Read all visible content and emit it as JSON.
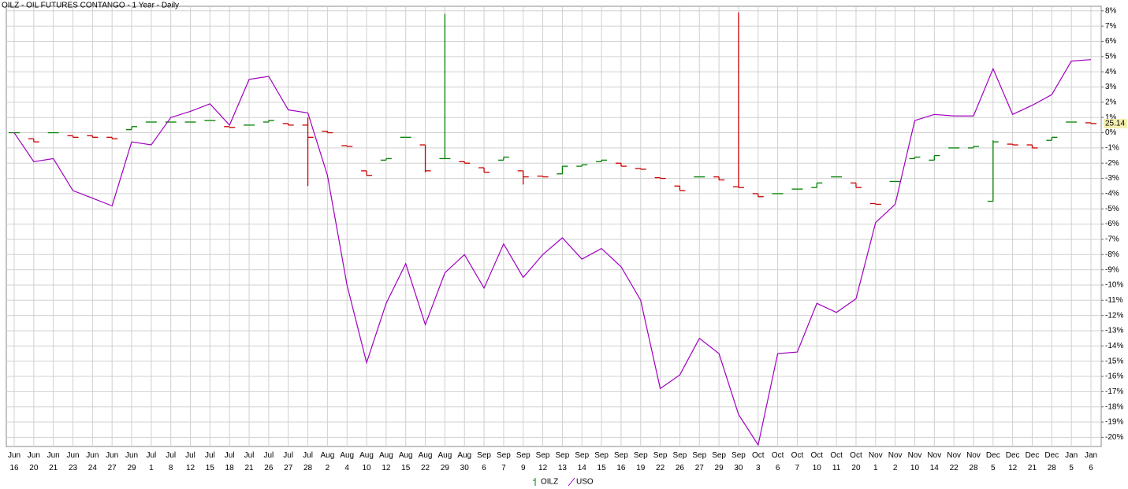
{
  "chart_data": {
    "type": "ohlc_line",
    "title": "OILZ - OIL FUTURES CONTANGO - 1 Year - Daily",
    "categories": [
      [
        "Jun",
        "16"
      ],
      [
        "Jun",
        "20"
      ],
      [
        "Jun",
        "21"
      ],
      [
        "Jun",
        "23"
      ],
      [
        "Jun",
        "24"
      ],
      [
        "Jun",
        "27"
      ],
      [
        "Jun",
        "29"
      ],
      [
        "Jul",
        "1"
      ],
      [
        "Jul",
        "8"
      ],
      [
        "Jul",
        "12"
      ],
      [
        "Jul",
        "15"
      ],
      [
        "Jul",
        "18"
      ],
      [
        "Jul",
        "21"
      ],
      [
        "Jul",
        "26"
      ],
      [
        "Jul",
        "27"
      ],
      [
        "Jul",
        "28"
      ],
      [
        "Aug",
        "2"
      ],
      [
        "Aug",
        "4"
      ],
      [
        "Aug",
        "10"
      ],
      [
        "Aug",
        "12"
      ],
      [
        "Aug",
        "15"
      ],
      [
        "Aug",
        "22"
      ],
      [
        "Aug",
        "29"
      ],
      [
        "Aug",
        "30"
      ],
      [
        "Sep",
        "6"
      ],
      [
        "Sep",
        "7"
      ],
      [
        "Sep",
        "9"
      ],
      [
        "Sep",
        "12"
      ],
      [
        "Sep",
        "13"
      ],
      [
        "Sep",
        "14"
      ],
      [
        "Sep",
        "15"
      ],
      [
        "Sep",
        "16"
      ],
      [
        "Sep",
        "19"
      ],
      [
        "Sep",
        "22"
      ],
      [
        "Sep",
        "26"
      ],
      [
        "Sep",
        "27"
      ],
      [
        "Sep",
        "29"
      ],
      [
        "Sep",
        "30"
      ],
      [
        "Oct",
        "3"
      ],
      [
        "Oct",
        "6"
      ],
      [
        "Oct",
        "7"
      ],
      [
        "Oct",
        "10"
      ],
      [
        "Oct",
        "11"
      ],
      [
        "Oct",
        "20"
      ],
      [
        "Nov",
        "1"
      ],
      [
        "Nov",
        "2"
      ],
      [
        "Nov",
        "10"
      ],
      [
        "Nov",
        "14"
      ],
      [
        "Nov",
        "22"
      ],
      [
        "Nov",
        "28"
      ],
      [
        "Dec",
        "5"
      ],
      [
        "Dec",
        "12"
      ],
      [
        "Dec",
        "21"
      ],
      [
        "Dec",
        "28"
      ],
      [
        "Jan",
        "5"
      ],
      [
        "Jan",
        "6"
      ]
    ],
    "ylim": [
      -20.6,
      8.3
    ],
    "yticks": [
      {
        "value": 8,
        "label": "8%"
      },
      {
        "value": 7,
        "label": "7%"
      },
      {
        "value": 6,
        "label": "6%"
      },
      {
        "value": 5,
        "label": "5%"
      },
      {
        "value": 4,
        "label": "4%"
      },
      {
        "value": 3,
        "label": "3%"
      },
      {
        "value": 2,
        "label": "2%"
      },
      {
        "value": 1,
        "label": "1%"
      },
      {
        "value": 0,
        "label": "0%"
      },
      {
        "value": -1,
        "label": "-1%"
      },
      {
        "value": -2,
        "label": "-2%"
      },
      {
        "value": -3,
        "label": "-3%"
      },
      {
        "value": -4,
        "label": "-4%"
      },
      {
        "value": -5,
        "label": "-5%"
      },
      {
        "value": -6,
        "label": "-6%"
      },
      {
        "value": -7,
        "label": "-7%"
      },
      {
        "value": -8,
        "label": "-8%"
      },
      {
        "value": -9,
        "label": "-9%"
      },
      {
        "value": -10,
        "label": "-10%"
      },
      {
        "value": -11,
        "label": "-11%"
      },
      {
        "value": -12,
        "label": "-12%"
      },
      {
        "value": -13,
        "label": "-13%"
      },
      {
        "value": -14,
        "label": "-14%"
      },
      {
        "value": -15,
        "label": "-15%"
      },
      {
        "value": -16,
        "label": "-16%"
      },
      {
        "value": -17,
        "label": "-17%"
      },
      {
        "value": -18,
        "label": "-18%"
      },
      {
        "value": -19,
        "label": "-19%"
      },
      {
        "value": -20,
        "label": "-20%"
      }
    ],
    "grid": true,
    "last_price": 25.14,
    "series": [
      {
        "name": "OILZ",
        "type": "ohlc",
        "color": "#008000",
        "down_color": "#cc0000",
        "open": [
          0,
          -0.4,
          0,
          -0.2,
          -0.2,
          -0.3,
          0.2,
          0.7,
          0.7,
          0.7,
          0.8,
          0.4,
          0.5,
          0.7,
          0.6,
          0.5,
          0.1,
          -0.85,
          -2.5,
          -1.8,
          -0.3,
          -0.8,
          -1.7,
          -1.9,
          -2.3,
          -1.8,
          -2.5,
          -2.85,
          -2.7,
          -2.2,
          -1.9,
          -2.0,
          -2.35,
          -2.95,
          -3.5,
          -2.9,
          -2.9,
          -3.55,
          -4.0,
          -4.0,
          -3.7,
          -3.6,
          -2.9,
          -3.3,
          -4.65,
          -3.2,
          -1.7,
          -1.8,
          -1.0,
          -1.0,
          -4.5,
          -0.75,
          -0.8,
          -0.5,
          0.7,
          0.65
        ],
        "high": [
          0,
          -0.4,
          0,
          -0.2,
          -0.2,
          -0.3,
          0.4,
          0.7,
          0.7,
          0.7,
          0.8,
          0.4,
          0.5,
          0.8,
          0.6,
          1.0,
          0.1,
          -0.85,
          -2.5,
          -1.7,
          -0.3,
          -0.8,
          7.8,
          -1.9,
          -2.3,
          -1.6,
          -2.5,
          -2.85,
          -2.2,
          -2.1,
          -1.8,
          -2.0,
          -2.35,
          -2.95,
          -3.5,
          -2.9,
          -2.9,
          7.9,
          -4.0,
          -4.0,
          -3.7,
          -3.3,
          -2.9,
          -3.3,
          -4.65,
          -3.2,
          -1.6,
          -1.5,
          -1.0,
          -0.9,
          -0.5,
          -0.75,
          -0.8,
          -0.3,
          0.7,
          0.65
        ],
        "low": [
          0,
          -0.6,
          0,
          -0.3,
          -0.3,
          -0.4,
          0.2,
          0.7,
          0.7,
          0.7,
          0.8,
          0.35,
          0.5,
          0.7,
          0.5,
          -3.5,
          0,
          -0.9,
          -2.8,
          -1.8,
          -0.3,
          -2.6,
          -1.7,
          -2.0,
          -2.6,
          -1.8,
          -3.4,
          -2.9,
          -2.7,
          -2.2,
          -1.9,
          -2.2,
          -2.4,
          -3.0,
          -3.8,
          -2.9,
          -3.1,
          -3.6,
          -4.2,
          -4.0,
          -3.7,
          -3.6,
          -2.9,
          -3.6,
          -4.7,
          -3.2,
          -1.7,
          -1.8,
          -1.0,
          -1.0,
          -4.5,
          -0.8,
          -1.0,
          -0.5,
          0.7,
          0.6
        ],
        "close": [
          0,
          -0.6,
          0,
          -0.3,
          -0.3,
          -0.4,
          0.4,
          0.7,
          0.7,
          0.7,
          0.8,
          0.35,
          0.5,
          0.8,
          0.5,
          -0.3,
          0,
          -0.9,
          -2.8,
          -1.7,
          -0.3,
          -2.5,
          -1.7,
          -2.0,
          -2.6,
          -1.6,
          -2.9,
          -2.9,
          -2.2,
          -2.1,
          -1.8,
          -2.2,
          -2.4,
          -3.0,
          -3.8,
          -2.9,
          -3.1,
          -3.6,
          -4.2,
          -4.0,
          -3.7,
          -3.3,
          -2.9,
          -3.6,
          -4.7,
          -3.2,
          -1.6,
          -1.5,
          -1.0,
          -0.9,
          -0.6,
          -0.8,
          -1.0,
          -0.3,
          0.7,
          0.6
        ]
      },
      {
        "name": "USO",
        "type": "line",
        "color": "#a000c0",
        "values": [
          0,
          -1.9,
          -1.7,
          -3.8,
          -4.3,
          -4.8,
          -0.6,
          -0.8,
          1.0,
          1.4,
          1.9,
          0.5,
          3.5,
          3.7,
          1.5,
          1.3,
          -2.8,
          -10.0,
          -15.1,
          -11.2,
          -8.6,
          -12.6,
          -9.2,
          -8.0,
          -10.2,
          -7.3,
          -9.5,
          -8.0,
          -6.9,
          -8.3,
          -7.6,
          -8.8,
          -11.0,
          -16.8,
          -15.9,
          -13.5,
          -14.5,
          -18.5,
          -20.5,
          -14.5,
          -14.4,
          -11.2,
          -11.8,
          -10.9,
          -5.9,
          -4.7,
          0.8,
          1.2,
          1.1,
          1.1,
          4.2,
          1.2,
          1.8,
          2.5,
          4.7,
          4.8
        ]
      }
    ]
  }
}
